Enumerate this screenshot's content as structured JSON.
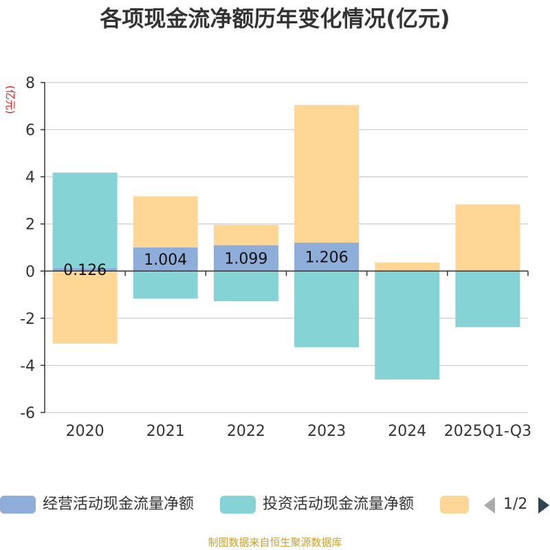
{
  "chart_data": {
    "type": "bar",
    "title": "各项现金流净额历年变化情况(亿元)",
    "ylabel": "(亿元)",
    "xlabel": "",
    "ylim": [
      -6,
      8
    ],
    "yticks": [
      -6,
      -4,
      -2,
      0,
      2,
      4,
      6,
      8
    ],
    "grid": true,
    "stacked": true,
    "categories": [
      "2020",
      "2021",
      "2022",
      "2023",
      "2024",
      "2025Q1-Q3"
    ],
    "series": [
      {
        "name": "经营活动现金流量净额",
        "color": "#8eadd9",
        "values": [
          0.126,
          1.004,
          1.099,
          1.206,
          0.01,
          0.02
        ],
        "data_labels": [
          "0.126",
          "1.004",
          "1.099",
          "1.206",
          "",
          ""
        ]
      },
      {
        "name": "投资活动现金流量净额",
        "color": "#86d3d6",
        "values": [
          4.05,
          -1.17,
          -1.28,
          -3.23,
          -4.6,
          -2.38
        ]
      },
      {
        "name": "",
        "color": "#fed796",
        "values": [
          -3.08,
          2.17,
          0.86,
          5.84,
          0.35,
          2.81
        ]
      }
    ]
  },
  "legend": {
    "items": [
      "经营活动现金流量净额",
      "投资活动现金流量净额",
      ""
    ],
    "page_text": "1/2"
  },
  "footer": {
    "source": "制图数据来自恒生聚源数据库"
  }
}
